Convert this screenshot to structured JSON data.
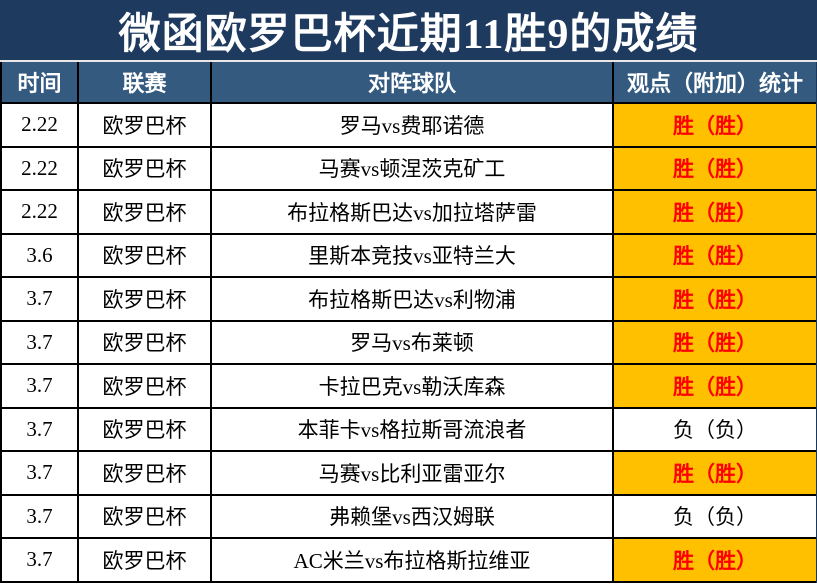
{
  "title": "微函欧罗巴杯近期11胜9的成绩",
  "table": {
    "headers": [
      "时间",
      "联赛",
      "对阵球队",
      "观点（附加）统计"
    ],
    "rows": [
      {
        "date": "2.22",
        "league": "欧罗巴杯",
        "match": "罗马vs费耶诺德",
        "result": "胜（胜）",
        "outcome": "win"
      },
      {
        "date": "2.22",
        "league": "欧罗巴杯",
        "match": "马赛vs顿涅茨克矿工",
        "result": "胜（胜）",
        "outcome": "win"
      },
      {
        "date": "2.22",
        "league": "欧罗巴杯",
        "match": "布拉格斯巴达vs加拉塔萨雷",
        "result": "胜（胜）",
        "outcome": "win"
      },
      {
        "date": "3.6",
        "league": "欧罗巴杯",
        "match": "里斯本竞技vs亚特兰大",
        "result": "胜（胜）",
        "outcome": "win"
      },
      {
        "date": "3.7",
        "league": "欧罗巴杯",
        "match": "布拉格斯巴达vs利物浦",
        "result": "胜（胜）",
        "outcome": "win"
      },
      {
        "date": "3.7",
        "league": "欧罗巴杯",
        "match": "罗马vs布莱顿",
        "result": "胜（胜）",
        "outcome": "win"
      },
      {
        "date": "3.7",
        "league": "欧罗巴杯",
        "match": "卡拉巴克vs勒沃库森",
        "result": "胜（胜）",
        "outcome": "win"
      },
      {
        "date": "3.7",
        "league": "欧罗巴杯",
        "match": "本菲卡vs格拉斯哥流浪者",
        "result": "负（负）",
        "outcome": "loss"
      },
      {
        "date": "3.7",
        "league": "欧罗巴杯",
        "match": "马赛vs比利亚雷亚尔",
        "result": "胜（胜）",
        "outcome": "win"
      },
      {
        "date": "3.7",
        "league": "欧罗巴杯",
        "match": "弗赖堡vs西汉姆联",
        "result": "负（负）",
        "outcome": "loss"
      },
      {
        "date": "3.7",
        "league": "欧罗巴杯",
        "match": "AC米兰vs布拉格斯拉维亚",
        "result": "胜（胜）",
        "outcome": "win"
      }
    ]
  },
  "colors": {
    "title_bg": "#1F3A5F",
    "header_bg": "#345A80",
    "win_bg": "#FFC000",
    "win_text": "#FF0000",
    "loss_text": "#000000",
    "border": "#000000",
    "separator": "#E8E8E8",
    "edge_stripe": "#17375D"
  }
}
